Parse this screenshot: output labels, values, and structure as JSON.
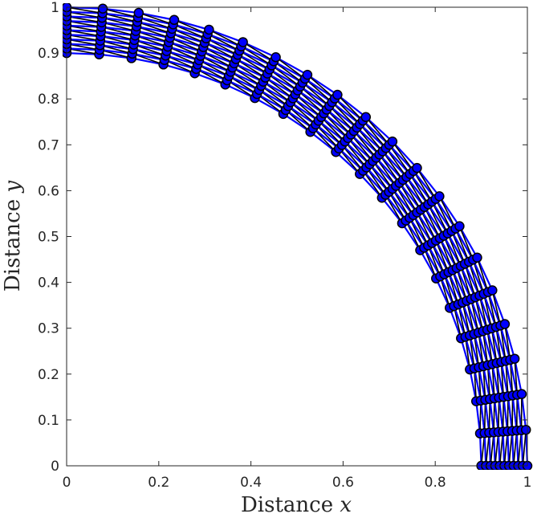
{
  "chart_data": {
    "type": "scatter",
    "title": "",
    "xlabel": {
      "text": "Distance",
      "variable": "x"
    },
    "ylabel": {
      "text": "Distance",
      "variable": "y"
    },
    "xlim": [
      0,
      1
    ],
    "ylim": [
      0,
      1
    ],
    "xticks": [
      "0",
      "0.2",
      "0.4",
      "0.6",
      "0.8",
      "1"
    ],
    "yticks": [
      "0",
      "0.1",
      "0.2",
      "0.3",
      "0.4",
      "0.5",
      "0.6",
      "0.7",
      "0.8",
      "0.9",
      "1"
    ],
    "grid": false,
    "legend": "none",
    "mesh": {
      "shape": "quarter annulus",
      "inner_radius": 0.9,
      "outer_radius": 1.0,
      "angle_range_deg": [
        0,
        90
      ],
      "radial_nodes": 11,
      "angular_nodes": 21,
      "element_edge_color": "#0000ff",
      "element_fill_color": "#ffffff",
      "element_hatch_color": "#000000",
      "node_face_color": "#0000ff",
      "node_edge_color": "#000000"
    }
  }
}
